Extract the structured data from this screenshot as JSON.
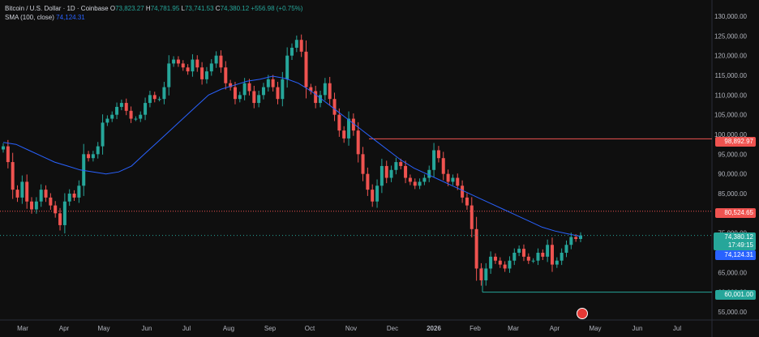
{
  "legend": {
    "symbol": "Bitcoin / U.S. Dollar · 1D · Coinbase",
    "o_label": "O",
    "o_value": "73,823.27",
    "h_label": "H",
    "h_value": "74,781.95",
    "l_label": "L",
    "l_value": "73,741.53",
    "c_label": "C",
    "c_value": "74,380.12",
    "change": "+556.98 (+0.75%)",
    "sma_label": "SMA (100, close)",
    "sma_value": "74,124.31"
  },
  "price_axis": [
    "130,000.00",
    "125,000.00",
    "120,000.00",
    "115,000.00",
    "110,000.00",
    "105,000.00",
    "100,000.00",
    "95,000.00",
    "90,000.00",
    "85,000.00",
    "80,000.00",
    "75,000.00",
    "70,000.00",
    "65,000.00",
    "60,000.00",
    "55,000.00"
  ],
  "time_axis": [
    "Mar",
    "Apr",
    "May",
    "Jun",
    "Jul",
    "Aug",
    "Sep",
    "Oct",
    "Nov",
    "Dec",
    "2026",
    "Feb",
    "Mar",
    "Apr",
    "May",
    "Jun",
    "Jul"
  ],
  "price_tags": {
    "resistance": "98,892.97",
    "level_mid": "80,524.65",
    "last_price": "74,380.12",
    "countdown": "17:49:15",
    "sma_tag": "74,124.31",
    "support": "60,001.00"
  },
  "colors": {
    "up": "#26a69a",
    "down": "#ef5350",
    "sma": "#2962ff",
    "bg": "#0f0f0f"
  },
  "chart_data": {
    "type": "candlestick",
    "series": [
      {
        "name": "Bitcoin / U.S. Dollar",
        "values": [
          97000,
          93000,
          86000,
          84000,
          88000,
          83000,
          81000,
          83000,
          86000,
          84000,
          82000,
          80000,
          77000,
          83000,
          85000,
          84000,
          87000,
          95000,
          94000,
          95000,
          97000,
          103000,
          104000,
          105000,
          107000,
          108000,
          106000,
          104000,
          104000,
          105000,
          108000,
          110000,
          109000,
          109000,
          112000,
          118000,
          119000,
          118000,
          117000,
          116000,
          119000,
          117000,
          114000,
          116000,
          118000,
          120000,
          117000,
          113000,
          112000,
          109000,
          110000,
          113000,
          111000,
          108000,
          110000,
          112000,
          114000,
          112000,
          109000,
          114000,
          120000,
          122000,
          124000,
          121000,
          112000,
          111000,
          108000,
          110000,
          113000,
          109000,
          105000,
          101000,
          99000,
          104000,
          101000,
          95000,
          90000,
          86000,
          83000,
          87000,
          92000,
          89000,
          91000,
          93000,
          92000,
          89000,
          88000,
          87000,
          88000,
          89000,
          91000,
          96000,
          94000,
          90000,
          88000,
          89000,
          87000,
          84000,
          82000,
          76000,
          66000,
          63000,
          66000,
          69000,
          68000,
          67000,
          66000,
          68000,
          70000,
          71000,
          69000,
          68000,
          68000,
          70000,
          69000,
          72000,
          67000,
          68000,
          70000,
          72000,
          74000,
          73500,
          74380
        ]
      },
      {
        "name": "SMA (100, close)",
        "values": [
          98000,
          97500,
          96000,
          94500,
          93000,
          92000,
          91000,
          90500,
          90000,
          90500,
          92000,
          95000,
          98000,
          101000,
          104000,
          107000,
          110000,
          111500,
          112500,
          113500,
          114000,
          114800,
          114200,
          113000,
          111000,
          108500,
          106000,
          103500,
          101000,
          98500,
          96000,
          93500,
          91500,
          90000,
          88500,
          87000,
          85500,
          84000,
          82500,
          81000,
          79500,
          78000,
          76500,
          75500,
          74800,
          74124
        ]
      }
    ],
    "x_labels": [
      "Mar",
      "Apr",
      "May",
      "Jun",
      "Jul",
      "Aug",
      "Sep",
      "Oct",
      "Nov",
      "Dec",
      "2026",
      "Feb",
      "Mar",
      "Apr",
      "May",
      "Jun",
      "Jul"
    ],
    "ylim": [
      55000,
      130000
    ],
    "horizontal_levels": [
      98892.97,
      80524.65,
      60001.0
    ],
    "grid": false
  }
}
